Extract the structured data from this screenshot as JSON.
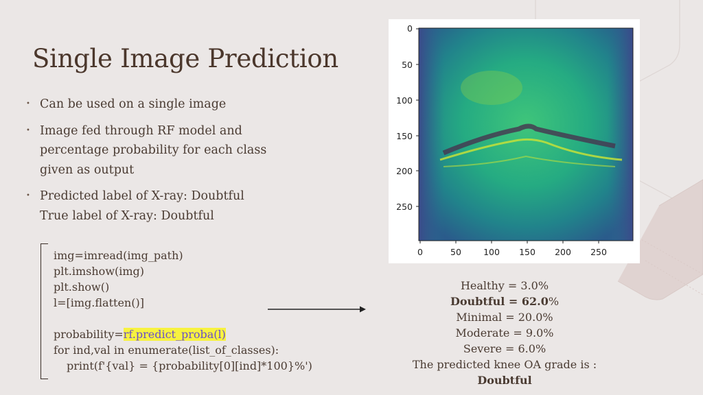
{
  "slide": {
    "title": "Single Image Prediction",
    "bullets": [
      {
        "lines": [
          "Can be used on a single image"
        ]
      },
      {
        "lines": [
          "Image fed through RF model and percentage probability for each class given as output"
        ]
      },
      {
        "lines": [
          "Predicted label of X-ray: Doubtful",
          "True label of X-ray: Doubtful"
        ]
      }
    ],
    "bullet_glyph": "•"
  },
  "code": {
    "line1": "img=imread(img_path)",
    "line2": "plt.imshow(img)",
    "line3": "plt.show()",
    "line4": "l=[img.flatten()]",
    "line6_pre": "probability=",
    "line6_hl": "rf.predict_proba(l)",
    "line7": "for ind,val in enumerate(list_of_classes):",
    "line8": "print(f'{val} = {probability[0][ind]*100}%')"
  },
  "plot": {
    "y_ticks": [
      "0",
      "50",
      "100",
      "150",
      "200",
      "250"
    ],
    "x_ticks": [
      "0",
      "50",
      "100",
      "150",
      "200",
      "250"
    ]
  },
  "results": {
    "healthy": "Healthy = 3.0%",
    "doubtful_bold": "Doubtful = 62.0",
    "doubtful_tail": "%",
    "minimal": "Minimal = 20.0%",
    "moderate": "Moderate = 9.0%",
    "severe": "Severe = 6.0%",
    "grade_prefix": "The predicted knee OA grade is : ",
    "grade_value": "Doubtful"
  },
  "colors": {
    "background": "#ebe7e6",
    "title": "#4b372c",
    "highlight": "#f7f240"
  }
}
